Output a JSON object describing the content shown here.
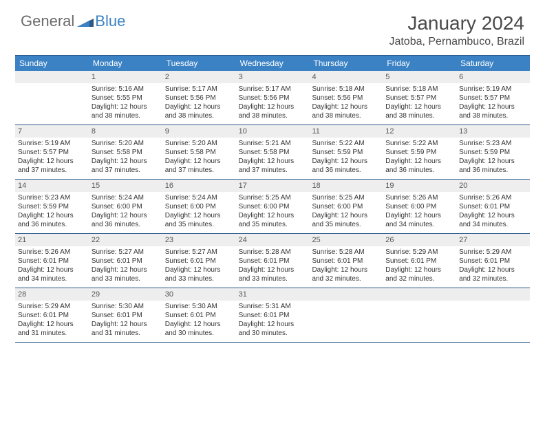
{
  "brand": {
    "general": "General",
    "blue": "Blue"
  },
  "title": "January 2024",
  "location": "Jatoba, Pernambuco, Brazil",
  "colors": {
    "header_bg": "#3b82c4",
    "border": "#2a5a8a",
    "daynum_bg": "#eeeeee",
    "text": "#333333"
  },
  "day_headers": [
    "Sunday",
    "Monday",
    "Tuesday",
    "Wednesday",
    "Thursday",
    "Friday",
    "Saturday"
  ],
  "weeks": [
    [
      {
        "num": "",
        "sunrise": "",
        "sunset": "",
        "daylight": ""
      },
      {
        "num": "1",
        "sunrise": "Sunrise: 5:16 AM",
        "sunset": "Sunset: 5:55 PM",
        "daylight": "Daylight: 12 hours and 38 minutes."
      },
      {
        "num": "2",
        "sunrise": "Sunrise: 5:17 AM",
        "sunset": "Sunset: 5:56 PM",
        "daylight": "Daylight: 12 hours and 38 minutes."
      },
      {
        "num": "3",
        "sunrise": "Sunrise: 5:17 AM",
        "sunset": "Sunset: 5:56 PM",
        "daylight": "Daylight: 12 hours and 38 minutes."
      },
      {
        "num": "4",
        "sunrise": "Sunrise: 5:18 AM",
        "sunset": "Sunset: 5:56 PM",
        "daylight": "Daylight: 12 hours and 38 minutes."
      },
      {
        "num": "5",
        "sunrise": "Sunrise: 5:18 AM",
        "sunset": "Sunset: 5:57 PM",
        "daylight": "Daylight: 12 hours and 38 minutes."
      },
      {
        "num": "6",
        "sunrise": "Sunrise: 5:19 AM",
        "sunset": "Sunset: 5:57 PM",
        "daylight": "Daylight: 12 hours and 38 minutes."
      }
    ],
    [
      {
        "num": "7",
        "sunrise": "Sunrise: 5:19 AM",
        "sunset": "Sunset: 5:57 PM",
        "daylight": "Daylight: 12 hours and 37 minutes."
      },
      {
        "num": "8",
        "sunrise": "Sunrise: 5:20 AM",
        "sunset": "Sunset: 5:58 PM",
        "daylight": "Daylight: 12 hours and 37 minutes."
      },
      {
        "num": "9",
        "sunrise": "Sunrise: 5:20 AM",
        "sunset": "Sunset: 5:58 PM",
        "daylight": "Daylight: 12 hours and 37 minutes."
      },
      {
        "num": "10",
        "sunrise": "Sunrise: 5:21 AM",
        "sunset": "Sunset: 5:58 PM",
        "daylight": "Daylight: 12 hours and 37 minutes."
      },
      {
        "num": "11",
        "sunrise": "Sunrise: 5:22 AM",
        "sunset": "Sunset: 5:59 PM",
        "daylight": "Daylight: 12 hours and 36 minutes."
      },
      {
        "num": "12",
        "sunrise": "Sunrise: 5:22 AM",
        "sunset": "Sunset: 5:59 PM",
        "daylight": "Daylight: 12 hours and 36 minutes."
      },
      {
        "num": "13",
        "sunrise": "Sunrise: 5:23 AM",
        "sunset": "Sunset: 5:59 PM",
        "daylight": "Daylight: 12 hours and 36 minutes."
      }
    ],
    [
      {
        "num": "14",
        "sunrise": "Sunrise: 5:23 AM",
        "sunset": "Sunset: 5:59 PM",
        "daylight": "Daylight: 12 hours and 36 minutes."
      },
      {
        "num": "15",
        "sunrise": "Sunrise: 5:24 AM",
        "sunset": "Sunset: 6:00 PM",
        "daylight": "Daylight: 12 hours and 36 minutes."
      },
      {
        "num": "16",
        "sunrise": "Sunrise: 5:24 AM",
        "sunset": "Sunset: 6:00 PM",
        "daylight": "Daylight: 12 hours and 35 minutes."
      },
      {
        "num": "17",
        "sunrise": "Sunrise: 5:25 AM",
        "sunset": "Sunset: 6:00 PM",
        "daylight": "Daylight: 12 hours and 35 minutes."
      },
      {
        "num": "18",
        "sunrise": "Sunrise: 5:25 AM",
        "sunset": "Sunset: 6:00 PM",
        "daylight": "Daylight: 12 hours and 35 minutes."
      },
      {
        "num": "19",
        "sunrise": "Sunrise: 5:26 AM",
        "sunset": "Sunset: 6:00 PM",
        "daylight": "Daylight: 12 hours and 34 minutes."
      },
      {
        "num": "20",
        "sunrise": "Sunrise: 5:26 AM",
        "sunset": "Sunset: 6:01 PM",
        "daylight": "Daylight: 12 hours and 34 minutes."
      }
    ],
    [
      {
        "num": "21",
        "sunrise": "Sunrise: 5:26 AM",
        "sunset": "Sunset: 6:01 PM",
        "daylight": "Daylight: 12 hours and 34 minutes."
      },
      {
        "num": "22",
        "sunrise": "Sunrise: 5:27 AM",
        "sunset": "Sunset: 6:01 PM",
        "daylight": "Daylight: 12 hours and 33 minutes."
      },
      {
        "num": "23",
        "sunrise": "Sunrise: 5:27 AM",
        "sunset": "Sunset: 6:01 PM",
        "daylight": "Daylight: 12 hours and 33 minutes."
      },
      {
        "num": "24",
        "sunrise": "Sunrise: 5:28 AM",
        "sunset": "Sunset: 6:01 PM",
        "daylight": "Daylight: 12 hours and 33 minutes."
      },
      {
        "num": "25",
        "sunrise": "Sunrise: 5:28 AM",
        "sunset": "Sunset: 6:01 PM",
        "daylight": "Daylight: 12 hours and 32 minutes."
      },
      {
        "num": "26",
        "sunrise": "Sunrise: 5:29 AM",
        "sunset": "Sunset: 6:01 PM",
        "daylight": "Daylight: 12 hours and 32 minutes."
      },
      {
        "num": "27",
        "sunrise": "Sunrise: 5:29 AM",
        "sunset": "Sunset: 6:01 PM",
        "daylight": "Daylight: 12 hours and 32 minutes."
      }
    ],
    [
      {
        "num": "28",
        "sunrise": "Sunrise: 5:29 AM",
        "sunset": "Sunset: 6:01 PM",
        "daylight": "Daylight: 12 hours and 31 minutes."
      },
      {
        "num": "29",
        "sunrise": "Sunrise: 5:30 AM",
        "sunset": "Sunset: 6:01 PM",
        "daylight": "Daylight: 12 hours and 31 minutes."
      },
      {
        "num": "30",
        "sunrise": "Sunrise: 5:30 AM",
        "sunset": "Sunset: 6:01 PM",
        "daylight": "Daylight: 12 hours and 30 minutes."
      },
      {
        "num": "31",
        "sunrise": "Sunrise: 5:31 AM",
        "sunset": "Sunset: 6:01 PM",
        "daylight": "Daylight: 12 hours and 30 minutes."
      },
      {
        "num": "",
        "sunrise": "",
        "sunset": "",
        "daylight": ""
      },
      {
        "num": "",
        "sunrise": "",
        "sunset": "",
        "daylight": ""
      },
      {
        "num": "",
        "sunrise": "",
        "sunset": "",
        "daylight": ""
      }
    ]
  ]
}
